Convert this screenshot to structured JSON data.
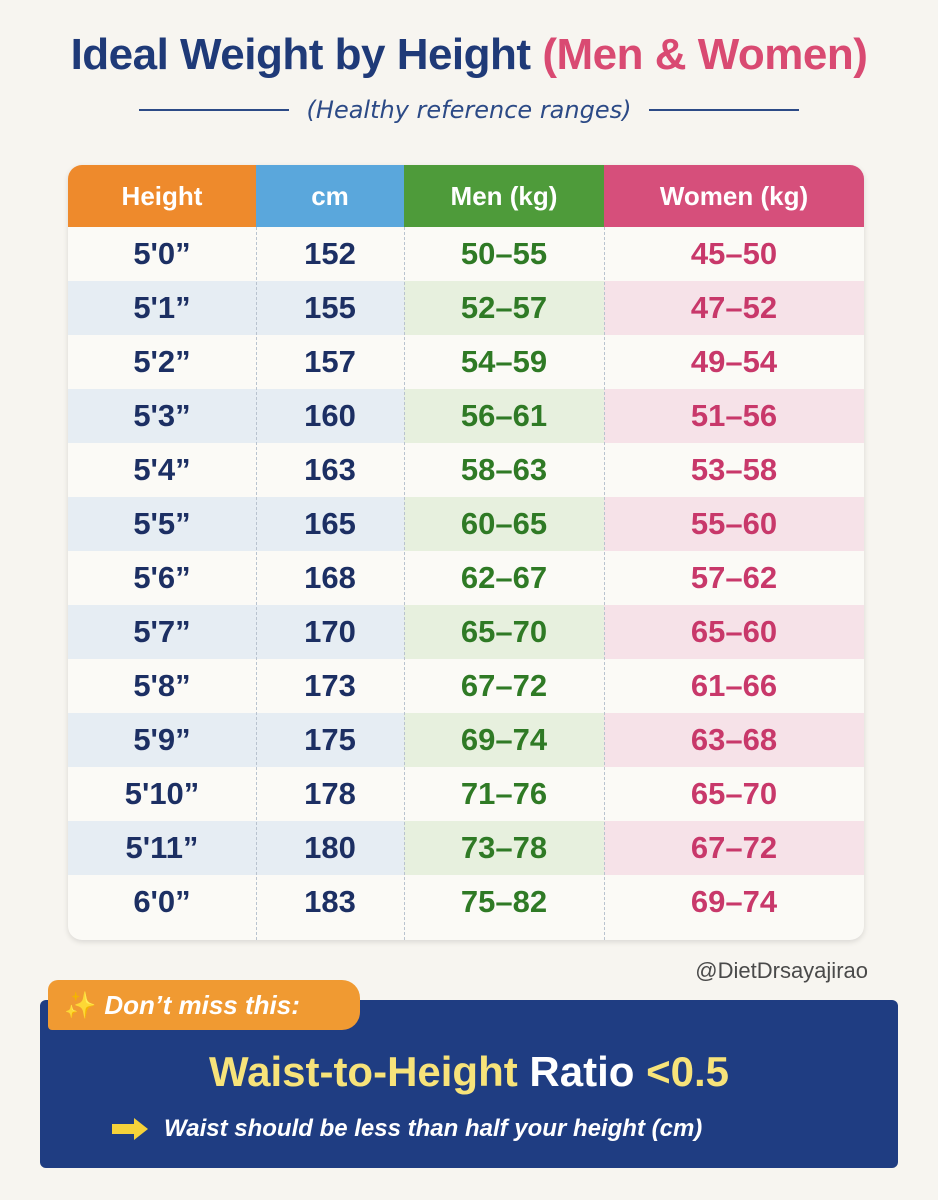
{
  "header": {
    "title_main": "Ideal Weight by Height",
    "title_accent": "(Men & Women)",
    "subtitle": "(Healthy reference ranges)"
  },
  "chart_data": {
    "type": "table",
    "columns": [
      "Height",
      "cm",
      "Men (kg)",
      "Women (kg)"
    ],
    "rows": [
      [
        "5'0”",
        "152",
        "50–55",
        "45–50"
      ],
      [
        "5'1”",
        "155",
        "52–57",
        "47–52"
      ],
      [
        "5'2”",
        "157",
        "54–59",
        "49–54"
      ],
      [
        "5'3”",
        "160",
        "56–61",
        "51–56"
      ],
      [
        "5'4”",
        "163",
        "58–63",
        "53–58"
      ],
      [
        "5'5”",
        "165",
        "60–65",
        "55–60"
      ],
      [
        "5'6”",
        "168",
        "62–67",
        "57–62"
      ],
      [
        "5'7”",
        "170",
        "65–70",
        "65–60"
      ],
      [
        "5'8”",
        "173",
        "67–72",
        "61–66"
      ],
      [
        "5'9”",
        "175",
        "69–74",
        "63–68"
      ],
      [
        "5'10”",
        "178",
        "71–76",
        "65–70"
      ],
      [
        "5'11”",
        "180",
        "73–78",
        "67–72"
      ],
      [
        "6'0”",
        "183",
        "75–82",
        "69–74"
      ]
    ]
  },
  "watermark": "@DietDrsayajirao",
  "callout": {
    "tag": "Don’t miss this:",
    "ratio_highlight": "Waist-to-Height",
    "ratio_word": "Ratio",
    "ratio_value": "<0.5",
    "note": "Waist should be less than half your height (cm)"
  },
  "colors": {
    "title": "#1f3a78",
    "accent": "#d94a72",
    "height_header": "#ee8a2c",
    "cm_header": "#5aa7dc",
    "men_header": "#4e9b3a",
    "women_header": "#d64f7b",
    "callout_bg": "#1f3d82"
  },
  "icons": {
    "tag_icon": "sparkle-icon",
    "note_icon": "arrow-right-icon"
  }
}
